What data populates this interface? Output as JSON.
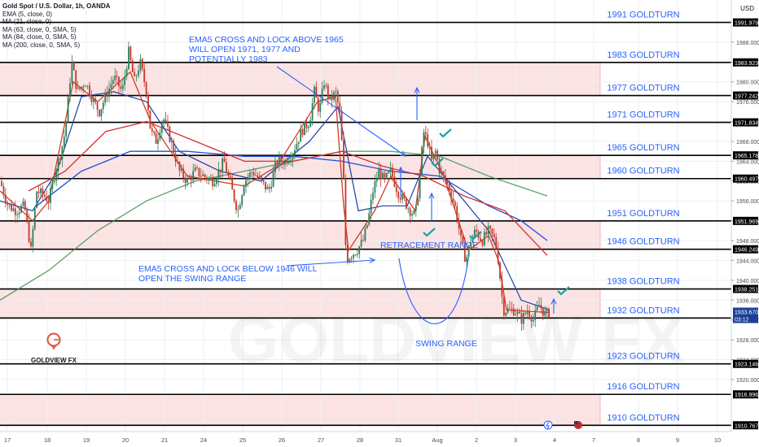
{
  "header": {
    "title": "Gold Spot / U.S. Dollar, 1h, OANDA",
    "indicators": [
      "EMA (5, close, 0)",
      "MA (21, close, 0)",
      "MA (63, close, 0, SMA, 5)",
      "MA (84, close, 0, SMA, 5)",
      "MA (200, close, 0, SMA, 5)"
    ],
    "currency": "USD"
  },
  "logo": {
    "brand": "GOLDVIEW FX",
    "watermark": "GOLDVIEW FX"
  },
  "colors": {
    "bull": "#2e7d5b",
    "bear": "#c0392b",
    "ema5": "#d43d20",
    "ma21": "#1c3fa8",
    "ma63": "#d32f2f",
    "ma84": "#1e4fd6",
    "ma200": "#3f8f4a",
    "zone": "#fbe3e3",
    "annotation": "#2962ff",
    "tealtick": "#1aa3a3"
  },
  "chart_data": {
    "type": "candlestick",
    "symbol": "Gold Spot / U.S. Dollar",
    "timeframe": "1h",
    "x_ticks": [
      "17",
      "18",
      "19",
      "20",
      "21",
      "24",
      "25",
      "26",
      "27",
      "28",
      "31",
      "Aug",
      "2",
      "3",
      "4",
      "7",
      "8",
      "9",
      "10"
    ],
    "y_ticks": [
      1920,
      1924,
      1928,
      1932,
      1936,
      1940,
      1944,
      1948,
      1952,
      1956,
      1960,
      1964,
      1968,
      1972,
      1976,
      1980,
      1984,
      1988
    ],
    "ylim": [
      1909.5,
      1996.5
    ],
    "levels": [
      {
        "value": 1991.979,
        "label": "1991 GOLDTURN"
      },
      {
        "value": 1983.923,
        "label": "1983 GOLDTURN"
      },
      {
        "value": 1977.242,
        "label": "1977 GOLDTURN"
      },
      {
        "value": 1971.834,
        "label": "1971 GOLDTURN"
      },
      {
        "value": 1965.178,
        "label": "1965 GOLDTURN"
      },
      {
        "value": 1960.497,
        "label": "1960 GOLDTURN"
      },
      {
        "value": 1951.969,
        "label": "1951 GOLDTURN"
      },
      {
        "value": 1946.249,
        "label": "1946 GOLDTURN"
      },
      {
        "value": 1938.251,
        "label": "1938 GOLDTURN"
      },
      {
        "value": 1932.381,
        "label": "1932 GOLDTURN"
      },
      {
        "value": 1923.146,
        "label": "1923 GOLDTURN"
      },
      {
        "value": 1916.996,
        "label": "1916 GOLDTURN"
      },
      {
        "value": 1910.767,
        "label": "1910 GOLDTURN"
      }
    ],
    "zones": [
      [
        1977.242,
        1983.923
      ],
      [
        1960.497,
        1965.178
      ],
      [
        1946.249,
        1951.969
      ],
      [
        1932.381,
        1938.251
      ],
      [
        1910.767,
        1916.996
      ]
    ],
    "current_price": "1933.670",
    "countdown": "03:12",
    "annotations": [
      {
        "name": "ema5-above-note",
        "lines": [
          "EMA5 CROSS AND LOCK ABOVE 1965",
          "WILL OPEN 1971, 1977 AND",
          "POTENTIALLY 1983"
        ]
      },
      {
        "name": "ema5-below-note",
        "lines": [
          "EMA5 CROSS AND LOCK BELOW 1946 WILL",
          "OPEN THE SWING RANGE"
        ]
      },
      {
        "name": "retracement-label",
        "lines": [
          "RETRACEMENT RANGE"
        ]
      },
      {
        "name": "swing-label",
        "lines": [
          "SWING RANGE"
        ]
      }
    ],
    "price_path": [
      [
        0,
        1960
      ],
      [
        10,
        1955
      ],
      [
        20,
        1954
      ],
      [
        30,
        1955
      ],
      [
        38,
        1946
      ],
      [
        45,
        1958
      ],
      [
        55,
        1957
      ],
      [
        60,
        1956
      ],
      [
        68,
        1962
      ],
      [
        75,
        1966
      ],
      [
        80,
        1970
      ],
      [
        88,
        1984
      ],
      [
        95,
        1978
      ],
      [
        105,
        1980
      ],
      [
        115,
        1976
      ],
      [
        122,
        1974
      ],
      [
        132,
        1978
      ],
      [
        140,
        1981
      ],
      [
        150,
        1978
      ],
      [
        158,
        1986
      ],
      [
        165,
        1980
      ],
      [
        172,
        1984
      ],
      [
        180,
        1978
      ],
      [
        185,
        1970
      ],
      [
        192,
        1968
      ],
      [
        200,
        1973
      ],
      [
        210,
        1968
      ],
      [
        220,
        1962
      ],
      [
        230,
        1960
      ],
      [
        240,
        1962
      ],
      [
        250,
        1961
      ],
      [
        262,
        1960
      ],
      [
        275,
        1964
      ],
      [
        285,
        1958
      ],
      [
        292,
        1954
      ],
      [
        300,
        1960
      ],
      [
        310,
        1962
      ],
      [
        320,
        1960
      ],
      [
        330,
        1958
      ],
      [
        340,
        1964
      ],
      [
        350,
        1964
      ],
      [
        360,
        1966
      ],
      [
        370,
        1970
      ],
      [
        380,
        1972
      ],
      [
        386,
        1978
      ],
      [
        392,
        1974
      ],
      [
        398,
        1980
      ],
      [
        405,
        1976
      ],
      [
        412,
        1978
      ],
      [
        418,
        1973
      ],
      [
        422,
        1960
      ],
      [
        425,
        1944
      ],
      [
        430,
        1945
      ],
      [
        438,
        1946
      ],
      [
        446,
        1948
      ],
      [
        452,
        1952
      ],
      [
        458,
        1958
      ],
      [
        465,
        1962
      ],
      [
        472,
        1960
      ],
      [
        480,
        1962
      ],
      [
        488,
        1958
      ],
      [
        496,
        1956
      ],
      [
        504,
        1954
      ],
      [
        510,
        1953
      ],
      [
        515,
        1960
      ],
      [
        520,
        1970
      ],
      [
        525,
        1968
      ],
      [
        530,
        1964
      ],
      [
        535,
        1966
      ],
      [
        540,
        1962
      ],
      [
        547,
        1960
      ],
      [
        553,
        1958
      ],
      [
        560,
        1954
      ],
      [
        566,
        1948
      ],
      [
        572,
        1944
      ],
      [
        578,
        1948
      ],
      [
        584,
        1950
      ],
      [
        592,
        1948
      ],
      [
        600,
        1950
      ],
      [
        608,
        1948
      ],
      [
        612,
        1944
      ],
      [
        618,
        1934
      ],
      [
        625,
        1934
      ],
      [
        632,
        1934
      ],
      [
        640,
        1932
      ],
      [
        648,
        1934
      ],
      [
        655,
        1932
      ],
      [
        662,
        1935
      ],
      [
        670,
        1933
      ],
      [
        675,
        1933.7
      ]
    ],
    "ema5_path": [
      [
        0,
        1958
      ],
      [
        40,
        1952
      ],
      [
        60,
        1956
      ],
      [
        90,
        1980
      ],
      [
        120,
        1976
      ],
      [
        160,
        1982
      ],
      [
        185,
        1972
      ],
      [
        230,
        1961
      ],
      [
        300,
        1959
      ],
      [
        340,
        1963
      ],
      [
        390,
        1976
      ],
      [
        412,
        1977
      ],
      [
        422,
        1955
      ],
      [
        428,
        1946
      ],
      [
        460,
        1954
      ],
      [
        480,
        1961
      ],
      [
        510,
        1954
      ],
      [
        522,
        1969
      ],
      [
        545,
        1961
      ],
      [
        575,
        1946
      ],
      [
        600,
        1949
      ],
      [
        612,
        1944
      ],
      [
        622,
        1934
      ],
      [
        675,
        1933.5
      ]
    ],
    "ma21_path": [
      [
        0,
        1956
      ],
      [
        40,
        1954
      ],
      [
        70,
        1962
      ],
      [
        100,
        1977
      ],
      [
        140,
        1978
      ],
      [
        180,
        1976
      ],
      [
        220,
        1966
      ],
      [
        270,
        1962
      ],
      [
        320,
        1960
      ],
      [
        380,
        1968
      ],
      [
        415,
        1975
      ],
      [
        440,
        1954
      ],
      [
        470,
        1955
      ],
      [
        500,
        1955
      ],
      [
        525,
        1965
      ],
      [
        560,
        1958
      ],
      [
        600,
        1950
      ],
      [
        640,
        1936
      ],
      [
        675,
        1934
      ]
    ],
    "ma63_path": [
      [
        35,
        1958
      ],
      [
        80,
        1962
      ],
      [
        130,
        1970
      ],
      [
        180,
        1972
      ],
      [
        240,
        1968
      ],
      [
        300,
        1964
      ],
      [
        360,
        1964
      ],
      [
        420,
        1966
      ],
      [
        470,
        1963
      ],
      [
        520,
        1961
      ],
      [
        570,
        1957
      ],
      [
        620,
        1954
      ],
      [
        672,
        1945
      ]
    ],
    "ma84_path": [
      [
        45,
        1955
      ],
      [
        100,
        1962
      ],
      [
        160,
        1966
      ],
      [
        230,
        1966
      ],
      [
        300,
        1965
      ],
      [
        360,
        1965
      ],
      [
        420,
        1964
      ],
      [
        480,
        1962
      ],
      [
        540,
        1961
      ],
      [
        600,
        1955
      ],
      [
        640,
        1952
      ],
      [
        672,
        1948
      ]
    ],
    "ma200_path": [
      [
        0,
        1936
      ],
      [
        60,
        1942
      ],
      [
        120,
        1950
      ],
      [
        180,
        1956
      ],
      [
        240,
        1960
      ],
      [
        300,
        1962
      ],
      [
        360,
        1964
      ],
      [
        420,
        1966
      ],
      [
        480,
        1966
      ],
      [
        540,
        1965
      ],
      [
        600,
        1961
      ],
      [
        672,
        1957
      ]
    ]
  }
}
